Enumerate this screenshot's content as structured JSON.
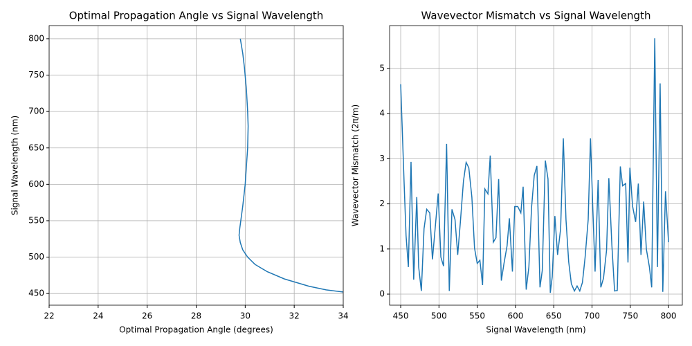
{
  "chart_data": [
    {
      "type": "line",
      "title": "Optimal Propagation Angle vs Signal Wavelength",
      "x_label": "Optimal Propagation Angle (degrees)",
      "y_label": "Signal Wavelength (nm)",
      "x": [
        34,
        33.3,
        32.6,
        32.1,
        31.6,
        30.9,
        30.4,
        30.1,
        29.9,
        29.8,
        29.75,
        29.78,
        29.82,
        29.9,
        30.0,
        30.05,
        30.1,
        30.12,
        30.1,
        30.05,
        29.97,
        29.9,
        29.8
      ],
      "values": [
        452,
        455,
        460,
        465,
        470,
        480,
        490,
        500,
        510,
        520,
        530,
        540,
        550,
        570,
        600,
        625,
        650,
        680,
        700,
        730,
        760,
        780,
        800
      ],
      "color": "#1f77b4",
      "xlim": [
        22,
        34
      ],
      "ylim": [
        434,
        818
      ],
      "xticks": [
        22,
        24,
        26,
        28,
        30,
        32,
        34
      ],
      "yticks": [
        450,
        500,
        550,
        600,
        650,
        700,
        750,
        800
      ],
      "grid": true
    },
    {
      "type": "line",
      "title": "Wavevector Mismatch vs Signal Wavelength",
      "x_label": "Signal Wavelength (nm)",
      "y_label": "Wavevector Mismatch (2π/m)",
      "x": [
        450,
        454.5,
        457,
        460,
        463.5,
        467,
        471,
        473.5,
        477,
        480.5,
        484,
        488,
        491.5,
        495,
        499,
        502.5,
        506,
        510,
        513.5,
        517,
        521,
        524.5,
        528,
        532,
        535.5,
        539,
        543,
        546.5,
        550,
        553.5,
        557,
        560,
        564,
        567,
        571,
        574.5,
        578,
        581.5,
        585,
        589,
        592,
        596,
        599,
        603,
        607,
        610,
        614,
        617.5,
        621,
        624.5,
        628,
        632,
        635,
        639,
        642.5,
        645.5,
        648,
        651.5,
        655,
        659,
        662.5,
        666,
        669.5,
        673,
        677,
        680.5,
        684,
        687.5,
        691,
        695,
        698,
        701,
        704,
        708,
        711.5,
        715,
        719,
        722,
        726,
        729.5,
        733,
        737,
        740,
        744,
        747,
        749.5,
        753,
        757,
        760.5,
        764,
        767.5,
        771,
        775,
        778,
        782,
        785.5,
        789,
        792.5,
        796,
        800
      ],
      "values": [
        4.65,
        2.45,
        1.3,
        0.6,
        2.93,
        0.32,
        2.15,
        0.6,
        0.07,
        1.45,
        1.88,
        1.8,
        0.77,
        1.45,
        2.23,
        0.82,
        0.62,
        3.33,
        0.07,
        1.88,
        1.65,
        0.87,
        1.6,
        2.5,
        2.92,
        2.8,
        2.15,
        1.02,
        0.68,
        0.75,
        0.2,
        2.33,
        2.22,
        3.07,
        1.15,
        1.25,
        2.55,
        0.3,
        0.68,
        1.07,
        1.68,
        0.5,
        1.94,
        1.94,
        1.8,
        2.38,
        0.1,
        0.6,
        1.92,
        2.63,
        2.84,
        0.15,
        0.52,
        2.96,
        2.55,
        0.03,
        0.38,
        1.73,
        0.87,
        1.45,
        3.45,
        1.65,
        0.72,
        0.23,
        0.07,
        0.18,
        0.07,
        0.26,
        0.82,
        1.65,
        3.45,
        1.92,
        0.5,
        2.53,
        0.15,
        0.35,
        0.97,
        2.57,
        1.07,
        0.07,
        0.08,
        2.83,
        2.4,
        2.45,
        0.7,
        2.8,
        1.95,
        1.6,
        2.45,
        0.87,
        2.05,
        1.0,
        0.6,
        0.15,
        5.67,
        0.6,
        4.67,
        0.05,
        2.28,
        1.15
      ],
      "color": "#1f77b4",
      "xlim": [
        435.5,
        818
      ],
      "ylim": [
        -0.245,
        5.95
      ],
      "xticks": [
        450,
        500,
        550,
        600,
        650,
        700,
        750,
        800
      ],
      "yticks": [
        0,
        1,
        2,
        3,
        4,
        5
      ],
      "grid": true
    }
  ]
}
